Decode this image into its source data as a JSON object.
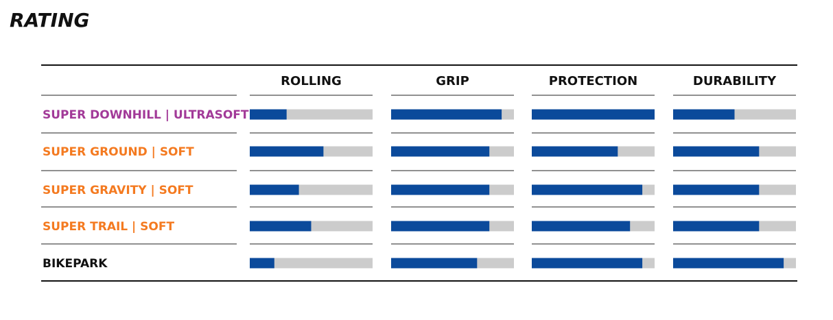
{
  "chart_data": {
    "type": "bar",
    "title": "RATING",
    "categories": [
      "ROLLING",
      "GRIP",
      "PROTECTION",
      "DURABILITY"
    ],
    "xlim": [
      0,
      100
    ],
    "bar_color": "#0b4a9b",
    "track_color": "#cccccc",
    "series": [
      {
        "name": "SUPER DOWNHILL | ULTRASOFT",
        "color": "#a23a98",
        "values": [
          30,
          90,
          100,
          50
        ]
      },
      {
        "name": "SUPER GROUND | SOFT",
        "color": "#f47a20",
        "values": [
          60,
          80,
          70,
          70
        ]
      },
      {
        "name": "SUPER GRAVITY | SOFT",
        "color": "#f47a20",
        "values": [
          40,
          80,
          90,
          70
        ]
      },
      {
        "name": "SUPER TRAIL | SOFT",
        "color": "#f47a20",
        "values": [
          50,
          80,
          80,
          70
        ]
      },
      {
        "name": "BIKEPARK",
        "color": "#111111",
        "values": [
          20,
          70,
          90,
          90
        ]
      }
    ]
  }
}
